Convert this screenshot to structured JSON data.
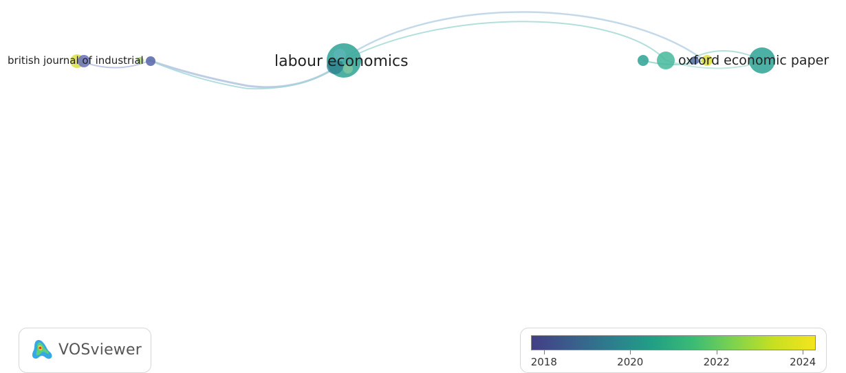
{
  "network": {
    "labels": {
      "british": "british journal of industrial",
      "labour": "labour economics",
      "oxford": "oxford economic paper"
    },
    "colors": {
      "c2018": "#433e85",
      "c2020": "#2c7f8e",
      "c2021": "#21a085",
      "c2022": "#7fd34e",
      "c2024": "#f4e41e"
    }
  },
  "brand": {
    "name": "VOSviewer",
    "logo_icon": "vosviewer-logo-icon"
  },
  "legend": {
    "ticks": [
      "2018",
      "2020",
      "2022",
      "2024"
    ],
    "range": [
      2017.7,
      2024.3
    ]
  }
}
